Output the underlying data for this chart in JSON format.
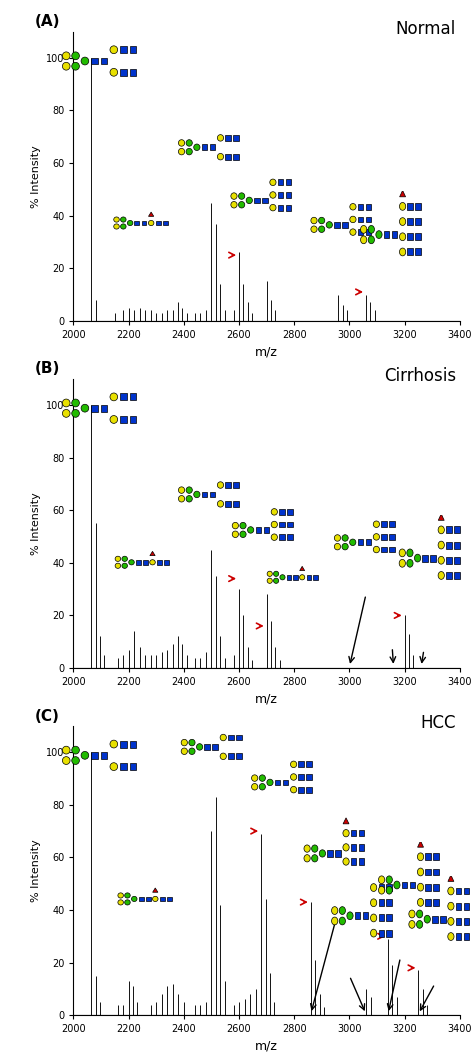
{
  "panels": [
    {
      "label": "A",
      "title": "Normal",
      "peaks": [
        {
          "mz": 2065,
          "intensity": 100
        },
        {
          "mz": 2080,
          "intensity": 8
        },
        {
          "mz": 2150,
          "intensity": 3
        },
        {
          "mz": 2180,
          "intensity": 4
        },
        {
          "mz": 2200,
          "intensity": 5
        },
        {
          "mz": 2220,
          "intensity": 4
        },
        {
          "mz": 2240,
          "intensity": 5
        },
        {
          "mz": 2260,
          "intensity": 4
        },
        {
          "mz": 2280,
          "intensity": 4
        },
        {
          "mz": 2300,
          "intensity": 3
        },
        {
          "mz": 2320,
          "intensity": 3
        },
        {
          "mz": 2340,
          "intensity": 4
        },
        {
          "mz": 2360,
          "intensity": 4
        },
        {
          "mz": 2380,
          "intensity": 7
        },
        {
          "mz": 2395,
          "intensity": 5
        },
        {
          "mz": 2410,
          "intensity": 3
        },
        {
          "mz": 2440,
          "intensity": 3
        },
        {
          "mz": 2460,
          "intensity": 3
        },
        {
          "mz": 2480,
          "intensity": 4
        },
        {
          "mz": 2500,
          "intensity": 45
        },
        {
          "mz": 2516,
          "intensity": 37
        },
        {
          "mz": 2532,
          "intensity": 14
        },
        {
          "mz": 2548,
          "intensity": 4
        },
        {
          "mz": 2580,
          "intensity": 4
        },
        {
          "mz": 2600,
          "intensity": 26
        },
        {
          "mz": 2616,
          "intensity": 14
        },
        {
          "mz": 2632,
          "intensity": 7
        },
        {
          "mz": 2648,
          "intensity": 3
        },
        {
          "mz": 2700,
          "intensity": 15
        },
        {
          "mz": 2716,
          "intensity": 8
        },
        {
          "mz": 2732,
          "intensity": 4
        },
        {
          "mz": 2960,
          "intensity": 10
        },
        {
          "mz": 2976,
          "intensity": 6
        },
        {
          "mz": 2992,
          "intensity": 4
        },
        {
          "mz": 3060,
          "intensity": 10
        },
        {
          "mz": 3076,
          "intensity": 7
        },
        {
          "mz": 3092,
          "intensity": 4
        }
      ]
    },
    {
      "label": "B",
      "title": "Cirrhosis",
      "peaks": [
        {
          "mz": 2065,
          "intensity": 100
        },
        {
          "mz": 2080,
          "intensity": 55
        },
        {
          "mz": 2095,
          "intensity": 12
        },
        {
          "mz": 2110,
          "intensity": 5
        },
        {
          "mz": 2160,
          "intensity": 4
        },
        {
          "mz": 2180,
          "intensity": 5
        },
        {
          "mz": 2200,
          "intensity": 7
        },
        {
          "mz": 2220,
          "intensity": 14
        },
        {
          "mz": 2240,
          "intensity": 8
        },
        {
          "mz": 2260,
          "intensity": 5
        },
        {
          "mz": 2280,
          "intensity": 5
        },
        {
          "mz": 2300,
          "intensity": 5
        },
        {
          "mz": 2320,
          "intensity": 6
        },
        {
          "mz": 2340,
          "intensity": 7
        },
        {
          "mz": 2360,
          "intensity": 9
        },
        {
          "mz": 2380,
          "intensity": 12
        },
        {
          "mz": 2395,
          "intensity": 9
        },
        {
          "mz": 2410,
          "intensity": 5
        },
        {
          "mz": 2440,
          "intensity": 4
        },
        {
          "mz": 2460,
          "intensity": 4
        },
        {
          "mz": 2480,
          "intensity": 6
        },
        {
          "mz": 2500,
          "intensity": 45
        },
        {
          "mz": 2516,
          "intensity": 35
        },
        {
          "mz": 2532,
          "intensity": 12
        },
        {
          "mz": 2548,
          "intensity": 4
        },
        {
          "mz": 2580,
          "intensity": 5
        },
        {
          "mz": 2600,
          "intensity": 30
        },
        {
          "mz": 2616,
          "intensity": 20
        },
        {
          "mz": 2632,
          "intensity": 8
        },
        {
          "mz": 2648,
          "intensity": 3
        },
        {
          "mz": 2700,
          "intensity": 28
        },
        {
          "mz": 2716,
          "intensity": 18
        },
        {
          "mz": 2732,
          "intensity": 8
        },
        {
          "mz": 2748,
          "intensity": 3
        },
        {
          "mz": 3200,
          "intensity": 20
        },
        {
          "mz": 3216,
          "intensity": 13
        },
        {
          "mz": 3232,
          "intensity": 5
        }
      ]
    },
    {
      "label": "C",
      "title": "HCC",
      "peaks": [
        {
          "mz": 2065,
          "intensity": 100
        },
        {
          "mz": 2080,
          "intensity": 15
        },
        {
          "mz": 2095,
          "intensity": 5
        },
        {
          "mz": 2160,
          "intensity": 4
        },
        {
          "mz": 2180,
          "intensity": 4
        },
        {
          "mz": 2200,
          "intensity": 13
        },
        {
          "mz": 2215,
          "intensity": 11
        },
        {
          "mz": 2230,
          "intensity": 5
        },
        {
          "mz": 2280,
          "intensity": 4
        },
        {
          "mz": 2300,
          "intensity": 5
        },
        {
          "mz": 2320,
          "intensity": 8
        },
        {
          "mz": 2340,
          "intensity": 11
        },
        {
          "mz": 2360,
          "intensity": 12
        },
        {
          "mz": 2380,
          "intensity": 8
        },
        {
          "mz": 2400,
          "intensity": 5
        },
        {
          "mz": 2440,
          "intensity": 4
        },
        {
          "mz": 2460,
          "intensity": 4
        },
        {
          "mz": 2480,
          "intensity": 5
        },
        {
          "mz": 2500,
          "intensity": 70
        },
        {
          "mz": 2516,
          "intensity": 83
        },
        {
          "mz": 2532,
          "intensity": 42
        },
        {
          "mz": 2548,
          "intensity": 13
        },
        {
          "mz": 2580,
          "intensity": 4
        },
        {
          "mz": 2600,
          "intensity": 5
        },
        {
          "mz": 2620,
          "intensity": 6
        },
        {
          "mz": 2640,
          "intensity": 8
        },
        {
          "mz": 2660,
          "intensity": 10
        },
        {
          "mz": 2680,
          "intensity": 69
        },
        {
          "mz": 2696,
          "intensity": 44
        },
        {
          "mz": 2712,
          "intensity": 16
        },
        {
          "mz": 2728,
          "intensity": 5
        },
        {
          "mz": 2860,
          "intensity": 43
        },
        {
          "mz": 2876,
          "intensity": 21
        },
        {
          "mz": 2892,
          "intensity": 8
        },
        {
          "mz": 2908,
          "intensity": 3
        },
        {
          "mz": 3060,
          "intensity": 10
        },
        {
          "mz": 3080,
          "intensity": 7
        },
        {
          "mz": 3140,
          "intensity": 29
        },
        {
          "mz": 3156,
          "intensity": 19
        },
        {
          "mz": 3172,
          "intensity": 7
        },
        {
          "mz": 3250,
          "intensity": 17
        },
        {
          "mz": 3266,
          "intensity": 10
        },
        {
          "mz": 3282,
          "intensity": 4
        }
      ]
    }
  ],
  "xlim": [
    2000,
    3400
  ],
  "ylim": [
    0,
    110
  ],
  "yticks": [
    0,
    20,
    40,
    60,
    80,
    100
  ],
  "xlabel": "m/z",
  "ylabel": "% Intensity",
  "peak_color": "#111111",
  "yellow": "#e8e000",
  "green": "#22bb00",
  "blue": "#0033cc",
  "red": "#cc0000"
}
